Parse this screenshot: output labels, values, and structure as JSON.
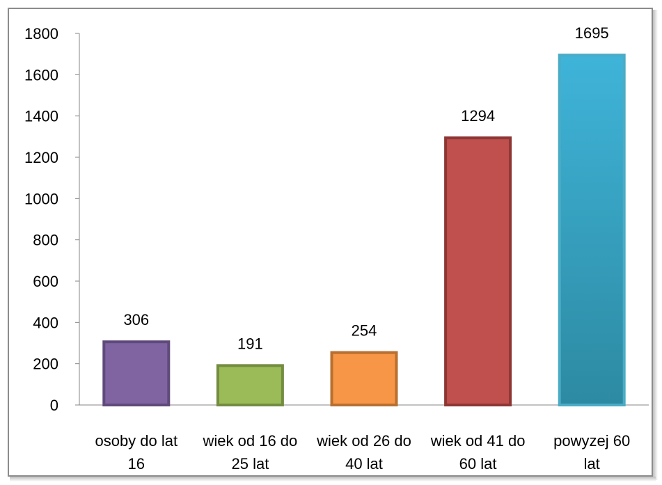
{
  "chart_data": {
    "type": "bar",
    "title": "",
    "xlabel": "",
    "ylabel": "",
    "ylim": [
      0,
      1800
    ],
    "yticks": [
      0,
      200,
      400,
      600,
      800,
      1000,
      1200,
      1400,
      1600,
      1800
    ],
    "grid": false,
    "legend": "none",
    "categories": [
      [
        "osoby do lat",
        "16"
      ],
      [
        "wiek od 16 do",
        "25 lat"
      ],
      [
        "wiek od 26 do",
        "40 lat"
      ],
      [
        "wiek od 41 do",
        "60 lat"
      ],
      [
        "powyzej 60",
        "lat"
      ]
    ],
    "values": [
      306,
      191,
      254,
      1294,
      1695
    ],
    "colors": [
      {
        "fill": "#8064a2",
        "stroke": "#5f4a7a"
      },
      {
        "fill": "#9bbb59",
        "stroke": "#738c41"
      },
      {
        "fill": "#f79646",
        "stroke": "#b86f2f"
      },
      {
        "fill": "#c0504d",
        "stroke": "#8d3735"
      },
      {
        "fill": "#4bacc6",
        "stroke": "#4bacc6",
        "gradient": [
          "#3fb4d9",
          "#2d8aa2"
        ]
      }
    ]
  }
}
